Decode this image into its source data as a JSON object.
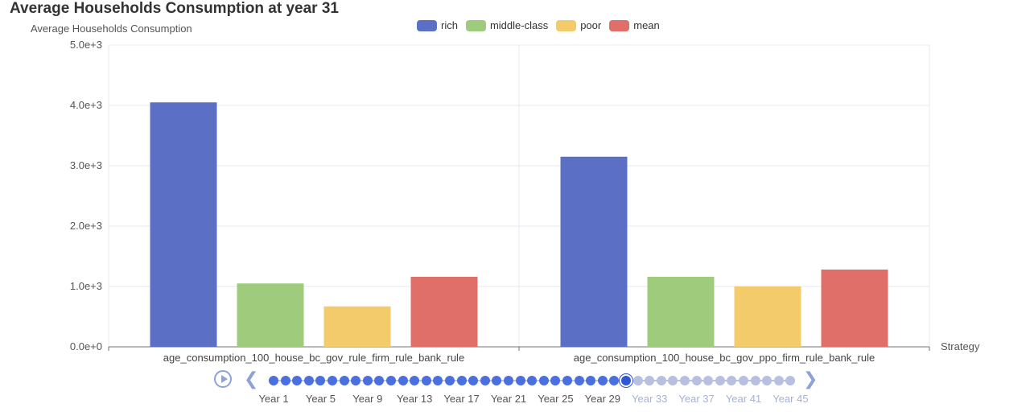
{
  "chart_data": {
    "type": "bar",
    "title": "Average Households Consumption at year 31",
    "ylabel": "Average Households Consumption",
    "xlabel": "Strategy",
    "ylim": [
      0,
      5000
    ],
    "yticks": [
      "0.0e+0",
      "1.0e+3",
      "2.0e+3",
      "3.0e+3",
      "4.0e+3",
      "5.0e+3"
    ],
    "categories": [
      "age_consumption_100_house_bc_gov_rule_firm_rule_bank_rule",
      "age_consumption_100_house_bc_gov_ppo_firm_rule_bank_rule"
    ],
    "series": [
      {
        "name": "rich",
        "color": "#5b70c4",
        "values": [
          4050,
          3150
        ]
      },
      {
        "name": "middle-class",
        "color": "#9ecb7c",
        "values": [
          1050,
          1160
        ]
      },
      {
        "name": "poor",
        "color": "#f3cb6b",
        "values": [
          670,
          1000
        ]
      },
      {
        "name": "mean",
        "color": "#e06e69",
        "values": [
          1160,
          1280
        ]
      }
    ],
    "grid": true,
    "legend_position": "top-center"
  },
  "timeline": {
    "labels": [
      "Year 1",
      "Year 5",
      "Year 9",
      "Year 13",
      "Year 17",
      "Year 21",
      "Year 25",
      "Year 29",
      "Year 33",
      "Year 37",
      "Year 41",
      "Year 45"
    ],
    "total_points": 45,
    "current_index": 30,
    "colors": {
      "past": "#4a6fde",
      "future": "#b7c0de",
      "current": "#3156d0"
    }
  }
}
